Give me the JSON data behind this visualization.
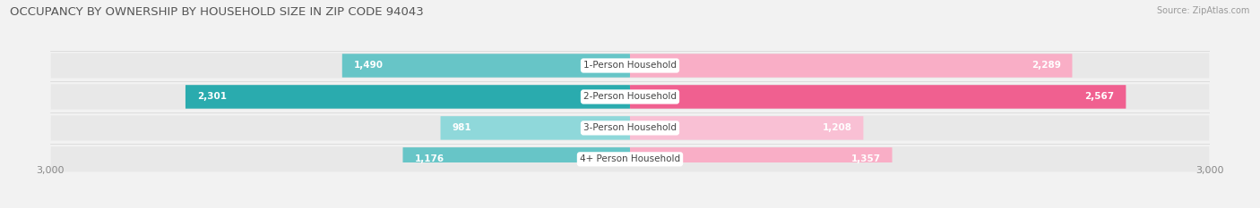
{
  "title": "OCCUPANCY BY OWNERSHIP BY HOUSEHOLD SIZE IN ZIP CODE 94043",
  "source": "Source: ZipAtlas.com",
  "categories": [
    "1-Person Household",
    "2-Person Household",
    "3-Person Household",
    "4+ Person Household"
  ],
  "owner_values": [
    1490,
    2301,
    981,
    1176
  ],
  "renter_values": [
    2289,
    2567,
    1208,
    1357
  ],
  "max_val": 3000,
  "owner_color_1": "#67c5c7",
  "owner_color_2": "#2aabae",
  "renter_color_1": "#f9aec6",
  "renter_color_2": "#f06090",
  "bg_color": "#f2f2f2",
  "bar_bg_color": "#e8e8e8",
  "title_fontsize": 9.5,
  "source_fontsize": 7,
  "label_fontsize": 7.5,
  "value_fontsize": 7.5,
  "tick_fontsize": 8,
  "legend_fontsize": 8,
  "bar_height": 0.62,
  "bar_gap": 0.15,
  "legend_owner_color": "#5bbfc2",
  "legend_renter_color": "#f48bab"
}
